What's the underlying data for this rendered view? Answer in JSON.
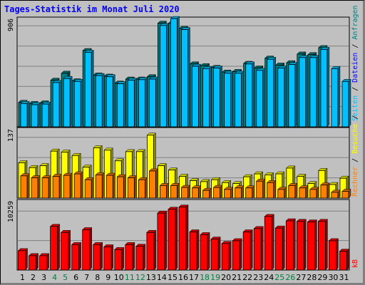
{
  "chart_data": {
    "type": "bar",
    "title": "Tages-Statistik im Monat Juli 2020",
    "categories": [
      "1",
      "2",
      "3",
      "4",
      "5",
      "6",
      "7",
      "8",
      "9",
      "10",
      "11",
      "12",
      "13",
      "14",
      "15",
      "16",
      "17",
      "18",
      "19",
      "20",
      "21",
      "22",
      "23",
      "24",
      "25",
      "26",
      "27",
      "28",
      "29",
      "30",
      "31"
    ],
    "weekend_days": [
      "4",
      "5",
      "11",
      "12",
      "18",
      "19",
      "25",
      "26"
    ],
    "panels": [
      {
        "name": "top",
        "max_label": "906",
        "ylim": [
          0,
          906
        ],
        "right_labels": [
          "Anfragen",
          "Dateien",
          "Seiten"
        ],
        "series": [
          {
            "name": "Anfragen",
            "color": "#008080",
            "values": [
              210,
              200,
              205,
              400,
              460,
              395,
              655,
              445,
              435,
              375,
              410,
              410,
              430,
              890,
              890,
              845,
              540,
              525,
              510,
              470,
              475,
              545,
              505,
              590,
              530,
              550,
              625,
              620,
              680,
              0,
              0
            ]
          },
          {
            "name": "Dateien",
            "color": "#00c0ff",
            "values": [
              200,
              190,
              195,
              380,
              415,
              390,
              640,
              440,
              430,
              370,
              400,
              405,
              410,
              870,
              930,
              835,
              520,
              500,
              505,
              460,
              460,
              540,
              485,
              580,
              505,
              535,
              595,
              595,
              665,
              500,
              390
            ]
          }
        ]
      },
      {
        "name": "middle",
        "max_label": "137",
        "ylim": [
          0,
          137
        ],
        "right_labels": [
          "Seiten",
          "Besuche",
          "Rechner"
        ],
        "series": [
          {
            "name": "Besuche",
            "color": "#ffff00",
            "values": [
              73,
              63,
              67,
              97,
              95,
              88,
              64,
              104,
              99,
              77,
              96,
              96,
              130,
              67,
              58,
              45,
              36,
              34,
              38,
              32,
              30,
              44,
              50,
              48,
              50,
              62,
              45,
              30,
              57,
              28,
              41
            ]
          },
          {
            "name": "Rechner",
            "color": "#ff8000",
            "values": [
              46,
              42,
              42,
              45,
              47,
              50,
              38,
              48,
              47,
              44,
              42,
              38,
              56,
              26,
              26,
              22,
              21,
              16,
              22,
              18,
              21,
              21,
              35,
              32,
              18,
              26,
              21,
              18,
              27,
              12,
              14
            ]
          }
        ]
      },
      {
        "name": "bottom",
        "max_label": "10259",
        "ylim": [
          0,
          12000
        ],
        "right_labels": [
          "kB"
        ],
        "series": [
          {
            "name": "kB",
            "color": "#ff0000",
            "values": [
              3500,
              2600,
              2600,
              7900,
              6800,
              4600,
              7300,
              4600,
              4200,
              3700,
              4600,
              4300,
              6800,
              10300,
              11000,
              11400,
              6900,
              6400,
              5600,
              4800,
              5300,
              6900,
              7500,
              9700,
              7600,
              8900,
              8800,
              8700,
              8800,
              5300,
              3400
            ]
          }
        ]
      }
    ]
  },
  "colors": {
    "background": "#c0c0c0",
    "title": "#0000ff",
    "weekday_label": "#000000",
    "weekend_label": "#008040",
    "grid": "#808080"
  }
}
